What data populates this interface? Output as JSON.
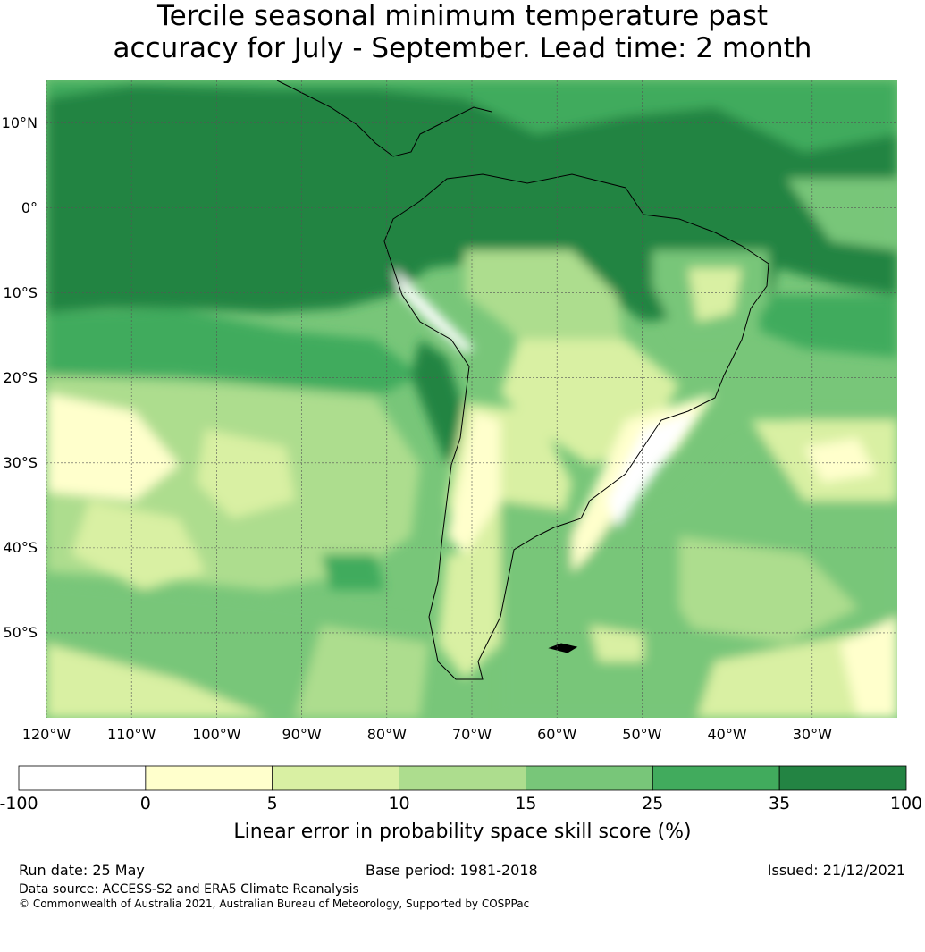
{
  "title": {
    "line1": "Tercile seasonal minimum temperature past",
    "line2": "accuracy for July - September. Lead time: 2 month"
  },
  "map": {
    "lat_labels": [
      {
        "text": "10°N",
        "lat": 10
      },
      {
        "text": "0°",
        "lat": 0
      },
      {
        "text": "10°S",
        "lat": -10
      },
      {
        "text": "20°S",
        "lat": -20
      },
      {
        "text": "30°S",
        "lat": -30
      },
      {
        "text": "40°S",
        "lat": -40
      },
      {
        "text": "50°S",
        "lat": -50
      }
    ],
    "lon_labels": [
      {
        "text": "120°W",
        "lon": -120
      },
      {
        "text": "110°W",
        "lon": -110
      },
      {
        "text": "100°W",
        "lon": -100
      },
      {
        "text": "90°W",
        "lon": -90
      },
      {
        "text": "80°W",
        "lon": -80
      },
      {
        "text": "70°W",
        "lon": -70
      },
      {
        "text": "60°W",
        "lon": -60
      },
      {
        "text": "50°W",
        "lon": -50
      },
      {
        "text": "40°W",
        "lon": -40
      },
      {
        "text": "30°W",
        "lon": -30
      }
    ],
    "extent": {
      "lon": [
        -120,
        -20
      ],
      "lat": [
        -60,
        15
      ]
    }
  },
  "colorbar": {
    "ticks": [
      "-100",
      "0",
      "5",
      "10",
      "15",
      "25",
      "35",
      "100"
    ],
    "colors": [
      "#ffffff",
      "#ffffcc",
      "#d9f0a3",
      "#addd8e",
      "#78c679",
      "#41ab5d",
      "#238443"
    ],
    "label": "Linear error in probability space skill score (%)"
  },
  "footer": {
    "run_date": "Run date: 25 May",
    "base_period": "Base period: 1981-2018",
    "issued": "Issued: 21/12/2021",
    "data_source": "Data source: ACCESS-S2 and ERA5 Climate Reanalysis",
    "copyright": "© Commonwealth of Australia 2021, Australian Bureau of Meteorology, Supported by COSPPac"
  }
}
